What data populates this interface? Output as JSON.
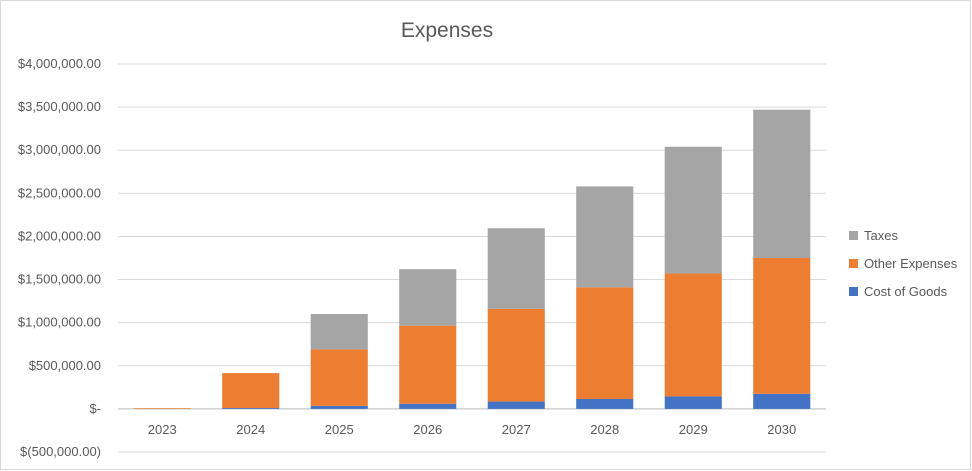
{
  "chart_data": {
    "type": "bar",
    "stacked": true,
    "title": "Expenses",
    "categories": [
      "2023",
      "2024",
      "2025",
      "2026",
      "2027",
      "2028",
      "2029",
      "2030"
    ],
    "series": [
      {
        "name": "Cost of Goods",
        "color": "#4472c4",
        "values": [
          0,
          10000,
          35000,
          60000,
          85000,
          115000,
          145000,
          175000
        ]
      },
      {
        "name": "Other Expenses",
        "color": "#ed7d31",
        "values": [
          8000,
          405000,
          655000,
          905000,
          1075000,
          1295000,
          1425000,
          1575000
        ]
      },
      {
        "name": "Taxes",
        "color": "#a5a5a5",
        "values": [
          0,
          0,
          410000,
          655000,
          935000,
          1170000,
          1470000,
          1720000
        ]
      }
    ],
    "legend_order": [
      "Taxes",
      "Other Expenses",
      "Cost of Goods"
    ],
    "legend_position": "right",
    "y_ticks": [
      {
        "value": -500000,
        "label": "$(500,000.00)"
      },
      {
        "value": 0,
        "label": "$-"
      },
      {
        "value": 500000,
        "label": "$500,000.00"
      },
      {
        "value": 1000000,
        "label": "$1,000,000.00"
      },
      {
        "value": 1500000,
        "label": "$1,500,000.00"
      },
      {
        "value": 2000000,
        "label": "$2,000,000.00"
      },
      {
        "value": 2500000,
        "label": "$2,500,000.00"
      },
      {
        "value": 3000000,
        "label": "$3,000,000.00"
      },
      {
        "value": 3500000,
        "label": "$3,500,000.00"
      },
      {
        "value": 4000000,
        "label": "$4,000,000.00"
      }
    ],
    "ylim": [
      -500000,
      4000000
    ],
    "grid": true,
    "xlabel": "",
    "ylabel": ""
  }
}
